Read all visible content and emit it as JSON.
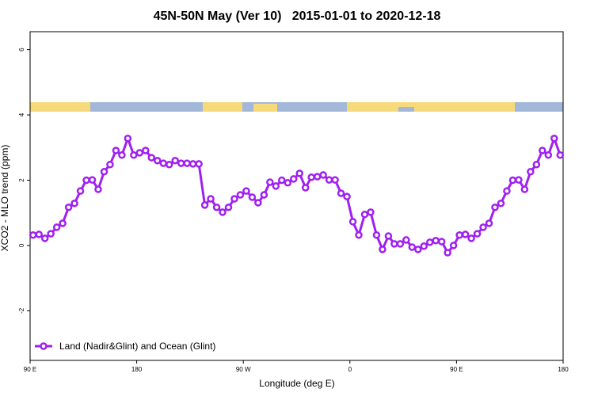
{
  "chart_data": {
    "type": "line",
    "title": "45N-50N May (Ver 10)   2015-01-01 to 2020-12-18",
    "x_label": "Longitude (deg E)",
    "y_label": "XCO2 - MLO trend (ppm)",
    "x": [
      92.5,
      97.5,
      102.5,
      107.5,
      112.5,
      117.5,
      122.5,
      127.5,
      132.5,
      137.5,
      142.5,
      147.5,
      152.5,
      157.5,
      162.5,
      167.5,
      172.5,
      177.5,
      182.5,
      187.5,
      192.5,
      197.5,
      202.5,
      207.5,
      212.5,
      217.5,
      222.5,
      227.5,
      232.5,
      237.5,
      242.5,
      247.5,
      252.5,
      257.5,
      262.5,
      267.5,
      272.5,
      277.5,
      282.5,
      287.5,
      292.5,
      297.5,
      302.5,
      307.5,
      312.5,
      317.5,
      322.5,
      327.5,
      332.5,
      337.5,
      342.5,
      347.5,
      352.5,
      357.5,
      362.5,
      367.5,
      372.5,
      377.5,
      382.5,
      387.5,
      392.5,
      397.5,
      402.5,
      407.5,
      412.5,
      417.5,
      422.5,
      427.5,
      432.5,
      437.5,
      442.5,
      447.5,
      452.5,
      457.5,
      462.5,
      467.5,
      472.5,
      477.5,
      482.5,
      487.5,
      492.5,
      497.5,
      502.5,
      507.5,
      512.5,
      517.5,
      522.5,
      527.5,
      532.5,
      537.5
    ],
    "series": [
      {
        "name": "Land (Nadir&Glint) and Ocean (Glint)",
        "color": "#a020f0",
        "values": [
          0.32,
          0.34,
          0.22,
          0.36,
          0.56,
          0.68,
          1.17,
          1.29,
          1.67,
          2.0,
          2.01,
          1.72,
          2.26,
          2.48,
          2.91,
          2.77,
          3.28,
          2.77,
          2.84,
          2.91,
          2.69,
          2.6,
          2.52,
          2.48,
          2.6,
          2.52,
          2.52,
          2.5,
          2.5,
          1.24,
          1.43,
          1.17,
          1.02,
          1.17,
          1.43,
          1.55,
          1.67,
          1.48,
          1.31,
          1.55,
          1.94,
          1.82,
          2.0,
          1.92,
          2.04,
          2.21,
          1.77,
          2.09,
          2.11,
          2.16,
          2.01,
          2.01,
          1.6,
          1.5,
          0.73,
          0.32,
          0.95,
          1.02,
          0.32,
          -0.12,
          0.29,
          0.05,
          0.05,
          0.17,
          -0.05,
          -0.12,
          -0.02,
          0.1,
          0.15,
          0.12,
          -0.22,
          0.0,
          0.32,
          0.34,
          0.22,
          0.36,
          0.56,
          0.68,
          1.17,
          1.29,
          1.67,
          2.0,
          2.01,
          1.72,
          2.26,
          2.48,
          2.91,
          2.77,
          3.28,
          2.77
        ]
      }
    ],
    "xlim": [
      90,
      540
    ],
    "xticks": [
      {
        "value": 90,
        "label": "90 E"
      },
      {
        "value": 180,
        "label": "180"
      },
      {
        "value": 270,
        "label": "90 W"
      },
      {
        "value": 360,
        "label": "0"
      },
      {
        "value": 450,
        "label": "90 E"
      },
      {
        "value": 540,
        "label": "180"
      }
    ],
    "ylim": [
      -3.52,
      6.55
    ],
    "yticks": [
      -2,
      0,
      2,
      4,
      6
    ],
    "legend_position": "bottom-left"
  }
}
